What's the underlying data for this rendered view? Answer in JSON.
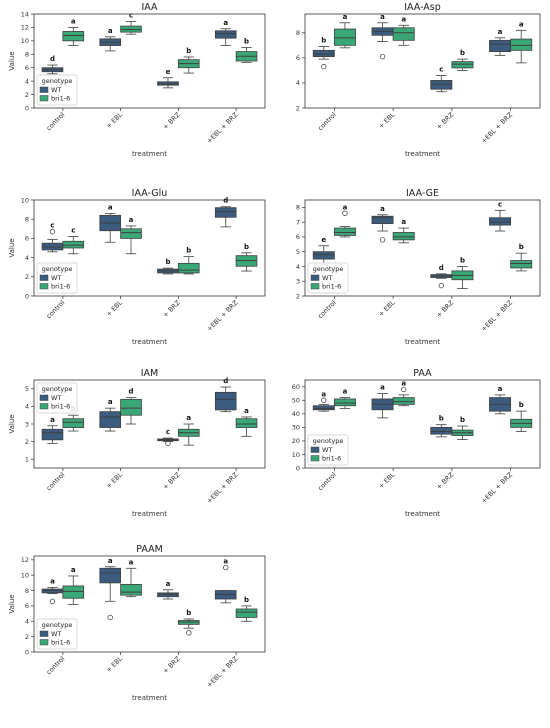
{
  "colors": {
    "WT": "#3b5c7e",
    "bri1-6": "#3aa876",
    "line": "#3f3f3f",
    "legend_border": "#cccccc"
  },
  "legend": {
    "title": "genotype",
    "entries": [
      "WT",
      "bri1-6"
    ]
  },
  "chart_data": [
    {
      "type": "box",
      "title": "IAA",
      "xlabel": "treatment",
      "ylabel": "Value",
      "categories": [
        "control",
        "+ EBL",
        "+ BRZ",
        "+EBL + BRZ"
      ],
      "ylim": [
        0,
        14
      ],
      "yticks": [
        0,
        2,
        4,
        6,
        8,
        10,
        12,
        14
      ],
      "legend_position": "bottom-left",
      "series": [
        {
          "name": "WT",
          "boxes": [
            {
              "min": 5.1,
              "q1": 5.4,
              "median": 5.7,
              "q3": 6.0,
              "max": 6.4,
              "outliers": [],
              "letter": "d"
            },
            {
              "min": 8.5,
              "q1": 9.3,
              "median": 9.8,
              "q3": 10.3,
              "max": 10.6,
              "outliers": [],
              "letter": "a"
            },
            {
              "min": 3.0,
              "q1": 3.4,
              "median": 3.6,
              "q3": 3.9,
              "max": 4.5,
              "outliers": [],
              "letter": "e"
            },
            {
              "min": 9.3,
              "q1": 10.4,
              "median": 11.1,
              "q3": 11.5,
              "max": 11.8,
              "outliers": [],
              "letter": "a"
            }
          ]
        },
        {
          "name": "bri1-6",
          "boxes": [
            {
              "min": 9.3,
              "q1": 10.0,
              "median": 10.8,
              "q3": 11.4,
              "max": 12.0,
              "outliers": [],
              "letter": "a"
            },
            {
              "min": 11.0,
              "q1": 11.3,
              "median": 11.7,
              "q3": 12.2,
              "max": 12.9,
              "outliers": [],
              "letter": "c"
            },
            {
              "min": 5.2,
              "q1": 6.0,
              "median": 6.6,
              "q3": 7.2,
              "max": 7.6,
              "outliers": [],
              "letter": "b"
            },
            {
              "min": 6.8,
              "q1": 7.0,
              "median": 7.7,
              "q3": 8.4,
              "max": 9.0,
              "outliers": [],
              "letter": "b"
            }
          ]
        }
      ]
    },
    {
      "type": "box",
      "title": "IAA-Asp",
      "xlabel": "treatment",
      "ylabel": "",
      "categories": [
        "control",
        "+ EBL",
        "+ BRZ",
        "+EBL + BRZ"
      ],
      "ylim": [
        2,
        9.5
      ],
      "yticks": [
        2,
        4,
        6,
        8
      ],
      "legend_position": "none",
      "series": [
        {
          "name": "WT",
          "boxes": [
            {
              "min": 5.9,
              "q1": 6.1,
              "median": 6.3,
              "q3": 6.6,
              "max": 6.9,
              "outliers": [
                5.3
              ],
              "letter": "b"
            },
            {
              "min": 7.3,
              "q1": 7.8,
              "median": 8.1,
              "q3": 8.4,
              "max": 8.8,
              "outliers": [
                6.1
              ],
              "letter": "a"
            },
            {
              "min": 3.3,
              "q1": 3.5,
              "median": 3.9,
              "q3": 4.2,
              "max": 4.6,
              "outliers": [],
              "letter": "c"
            },
            {
              "min": 6.2,
              "q1": 6.5,
              "median": 7.1,
              "q3": 7.4,
              "max": 7.6,
              "outliers": [],
              "letter": "a"
            }
          ]
        },
        {
          "name": "bri1-6",
          "boxes": [
            {
              "min": 6.8,
              "q1": 7.0,
              "median": 7.6,
              "q3": 8.3,
              "max": 8.8,
              "outliers": [],
              "letter": "a"
            },
            {
              "min": 7.0,
              "q1": 7.4,
              "median": 8.0,
              "q3": 8.4,
              "max": 8.6,
              "outliers": [],
              "letter": "a"
            },
            {
              "min": 5.0,
              "q1": 5.2,
              "median": 5.5,
              "q3": 5.7,
              "max": 5.9,
              "outliers": [],
              "letter": "b"
            },
            {
              "min": 5.6,
              "q1": 6.6,
              "median": 7.0,
              "q3": 7.5,
              "max": 8.2,
              "outliers": [],
              "letter": "a"
            }
          ]
        }
      ]
    },
    {
      "type": "box",
      "title": "IAA-Glu",
      "xlabel": "treatment",
      "ylabel": "Value",
      "categories": [
        "control",
        "+ EBL",
        "+ BRZ",
        "+EBL + BRZ"
      ],
      "ylim": [
        0,
        10
      ],
      "yticks": [
        0,
        2,
        4,
        6,
        8,
        10
      ],
      "legend_position": "bottom-left",
      "series": [
        {
          "name": "WT",
          "boxes": [
            {
              "min": 4.6,
              "q1": 4.8,
              "median": 5.1,
              "q3": 5.5,
              "max": 5.9,
              "outliers": [
                6.7
              ],
              "letter": "c"
            },
            {
              "min": 5.6,
              "q1": 6.8,
              "median": 7.6,
              "q3": 8.4,
              "max": 8.6,
              "outliers": [],
              "letter": "a"
            },
            {
              "min": 2.3,
              "q1": 2.4,
              "median": 2.6,
              "q3": 2.8,
              "max": 2.9,
              "outliers": [],
              "letter": "b"
            },
            {
              "min": 7.2,
              "q1": 8.2,
              "median": 8.8,
              "q3": 9.2,
              "max": 9.3,
              "outliers": [],
              "letter": "d"
            }
          ]
        },
        {
          "name": "bri1-6",
          "boxes": [
            {
              "min": 4.4,
              "q1": 5.0,
              "median": 5.3,
              "q3": 5.7,
              "max": 6.2,
              "outliers": [],
              "letter": "c"
            },
            {
              "min": 4.4,
              "q1": 6.0,
              "median": 6.6,
              "q3": 7.0,
              "max": 7.3,
              "outliers": [],
              "letter": "a"
            },
            {
              "min": 2.3,
              "q1": 2.4,
              "median": 2.7,
              "q3": 3.4,
              "max": 4.1,
              "outliers": [],
              "letter": "b"
            },
            {
              "min": 2.6,
              "q1": 3.1,
              "median": 3.7,
              "q3": 4.2,
              "max": 4.5,
              "outliers": [],
              "letter": "b"
            }
          ]
        }
      ]
    },
    {
      "type": "box",
      "title": "IAA-GE",
      "xlabel": "treatment",
      "ylabel": "",
      "categories": [
        "control",
        "+ EBL",
        "+ BRZ",
        "+EBL + BRZ"
      ],
      "ylim": [
        2,
        8.5
      ],
      "yticks": [
        2,
        3,
        4,
        5,
        6,
        7,
        8
      ],
      "legend_position": "bottom-left",
      "series": [
        {
          "name": "WT",
          "boxes": [
            {
              "min": 4.1,
              "q1": 4.5,
              "median": 4.8,
              "q3": 5.0,
              "max": 5.4,
              "outliers": [],
              "letter": "e"
            },
            {
              "min": 6.4,
              "q1": 6.9,
              "median": 7.3,
              "q3": 7.4,
              "max": 7.5,
              "outliers": [
                5.8
              ],
              "letter": "a"
            },
            {
              "min": 3.2,
              "q1": 3.25,
              "median": 3.35,
              "q3": 3.45,
              "max": 3.5,
              "outliers": [
                2.7
              ],
              "letter": "d"
            },
            {
              "min": 6.4,
              "q1": 6.8,
              "median": 7.0,
              "q3": 7.3,
              "max": 7.8,
              "outliers": [],
              "letter": "c"
            }
          ]
        },
        {
          "name": "bri1-6",
          "boxes": [
            {
              "min": 6.0,
              "q1": 6.1,
              "median": 6.3,
              "q3": 6.6,
              "max": 6.7,
              "outliers": [
                7.6
              ],
              "letter": "a"
            },
            {
              "min": 5.6,
              "q1": 5.8,
              "median": 6.0,
              "q3": 6.3,
              "max": 6.6,
              "outliers": [],
              "letter": "a"
            },
            {
              "min": 2.5,
              "q1": 3.1,
              "median": 3.4,
              "q3": 3.7,
              "max": 4.0,
              "outliers": [],
              "letter": "b"
            },
            {
              "min": 3.7,
              "q1": 3.9,
              "median": 4.2,
              "q3": 4.4,
              "max": 4.9,
              "outliers": [],
              "letter": "b"
            }
          ]
        }
      ]
    },
    {
      "type": "box",
      "title": "IAM",
      "xlabel": "treatment",
      "ylabel": "Value",
      "categories": [
        "control",
        "+ EBL",
        "+ BRZ",
        "+EBL + BRZ"
      ],
      "ylim": [
        0.5,
        5.5
      ],
      "yticks": [
        1,
        2,
        3,
        4,
        5
      ],
      "legend_position": "top-left",
      "series": [
        {
          "name": "WT",
          "boxes": [
            {
              "min": 1.9,
              "q1": 2.1,
              "median": 2.5,
              "q3": 2.7,
              "max": 2.9,
              "outliers": [],
              "letter": "a"
            },
            {
              "min": 2.6,
              "q1": 2.8,
              "median": 3.4,
              "q3": 3.7,
              "max": 3.9,
              "outliers": [],
              "letter": "a"
            },
            {
              "min": 2.0,
              "q1": 2.05,
              "median": 2.1,
              "q3": 2.15,
              "max": 2.2,
              "outliers": [
                1.9
              ],
              "letter": "c"
            },
            {
              "min": 3.7,
              "q1": 3.8,
              "median": 4.4,
              "q3": 4.8,
              "max": 5.1,
              "outliers": [],
              "letter": "d"
            }
          ]
        },
        {
          "name": "bri1-6",
          "boxes": [
            {
              "min": 2.6,
              "q1": 2.8,
              "median": 3.1,
              "q3": 3.3,
              "max": 3.5,
              "outliers": [],
              "letter": "b"
            },
            {
              "min": 3.0,
              "q1": 3.5,
              "median": 3.9,
              "q3": 4.4,
              "max": 4.5,
              "outliers": [],
              "letter": "d"
            },
            {
              "min": 1.8,
              "q1": 2.3,
              "median": 2.5,
              "q3": 2.7,
              "max": 3.0,
              "outliers": [],
              "letter": "a"
            },
            {
              "min": 2.3,
              "q1": 2.8,
              "median": 3.0,
              "q3": 3.3,
              "max": 3.4,
              "outliers": [],
              "letter": "a"
            }
          ]
        }
      ]
    },
    {
      "type": "box",
      "title": "PAA",
      "xlabel": "treatment",
      "ylabel": "",
      "categories": [
        "control",
        "+ EBL",
        "+ BRZ",
        "+EBL + BRZ"
      ],
      "ylim": [
        0,
        65
      ],
      "yticks": [
        0,
        10,
        20,
        30,
        40,
        50,
        60
      ],
      "legend_position": "bottom-left",
      "series": [
        {
          "name": "WT",
          "boxes": [
            {
              "min": 42,
              "q1": 43,
              "median": 44,
              "q3": 46,
              "max": 47,
              "outliers": [
                50
              ],
              "letter": "a"
            },
            {
              "min": 37,
              "q1": 43,
              "median": 47,
              "q3": 51,
              "max": 55,
              "outliers": [],
              "letter": "a"
            },
            {
              "min": 23,
              "q1": 25,
              "median": 27,
              "q3": 30,
              "max": 32,
              "outliers": [],
              "letter": "b"
            },
            {
              "min": 40,
              "q1": 42,
              "median": 47,
              "q3": 52,
              "max": 54,
              "outliers": [],
              "letter": "a"
            }
          ]
        },
        {
          "name": "bri1-6",
          "boxes": [
            {
              "min": 44,
              "q1": 46,
              "median": 48,
              "q3": 51,
              "max": 52,
              "outliers": [],
              "letter": "a"
            },
            {
              "min": 46,
              "q1": 47,
              "median": 49,
              "q3": 52,
              "max": 54,
              "outliers": [
                58
              ],
              "letter": "a"
            },
            {
              "min": 21,
              "q1": 24,
              "median": 26,
              "q3": 28,
              "max": 31,
              "outliers": [],
              "letter": "b"
            },
            {
              "min": 27,
              "q1": 30,
              "median": 33,
              "q3": 36,
              "max": 42,
              "outliers": [],
              "letter": "b"
            }
          ]
        }
      ]
    },
    {
      "type": "box",
      "title": "PAAM",
      "xlabel": "treatment",
      "ylabel": "Value",
      "categories": [
        "control",
        "+ EBL",
        "+ BRZ",
        "+EBL + BRZ"
      ],
      "ylim": [
        0,
        12.5
      ],
      "yticks": [
        0,
        2,
        4,
        6,
        8,
        10,
        12
      ],
      "legend_position": "bottom-left",
      "series": [
        {
          "name": "WT",
          "boxes": [
            {
              "min": 7.6,
              "q1": 7.7,
              "median": 8.0,
              "q3": 8.2,
              "max": 8.4,
              "outliers": [
                6.6
              ],
              "letter": "a"
            },
            {
              "min": 6.6,
              "q1": 9.0,
              "median": 10.3,
              "q3": 10.9,
              "max": 11.1,
              "outliers": [
                4.5
              ],
              "letter": "a"
            },
            {
              "min": 6.9,
              "q1": 7.2,
              "median": 7.5,
              "q3": 7.7,
              "max": 8.1,
              "outliers": [],
              "letter": "a"
            },
            {
              "min": 6.4,
              "q1": 6.9,
              "median": 7.5,
              "q3": 8.0,
              "max": 8.0,
              "outliers": [
                11.0
              ],
              "letter": "a"
            }
          ]
        },
        {
          "name": "bri1-6",
          "boxes": [
            {
              "min": 6.2,
              "q1": 7.0,
              "median": 7.9,
              "q3": 8.6,
              "max": 9.9,
              "outliers": [],
              "letter": "a"
            },
            {
              "min": 7.2,
              "q1": 7.4,
              "median": 7.8,
              "q3": 8.8,
              "max": 10.9,
              "outliers": [],
              "letter": "a"
            },
            {
              "min": 3.1,
              "q1": 3.6,
              "median": 3.9,
              "q3": 4.1,
              "max": 4.3,
              "outliers": [
                2.5
              ],
              "letter": "b"
            },
            {
              "min": 4.0,
              "q1": 4.5,
              "median": 5.2,
              "q3": 5.6,
              "max": 6.0,
              "outliers": [],
              "letter": "b"
            }
          ]
        }
      ]
    }
  ]
}
